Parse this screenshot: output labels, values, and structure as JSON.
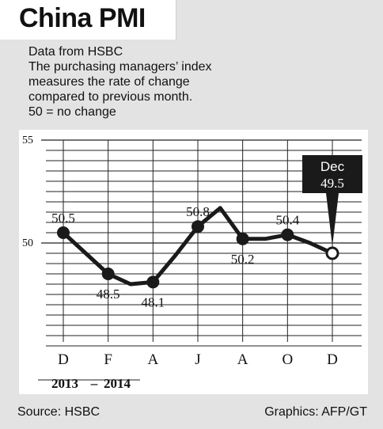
{
  "title": "China PMI",
  "description": [
    "Data from HSBC",
    "The purchasing managers’ index",
    "measures the rate of change",
    "compared to previous month.",
    "50 = no change"
  ],
  "footer": {
    "source": "Source: HSBC",
    "credit": "Graphics: AFP/GT"
  },
  "colors": {
    "line": "#1a1a1a",
    "background": "#e3e3e3",
    "panel": "#ffffff",
    "callout": "#1a1a1a",
    "callout_text": "#ffffff"
  },
  "chart_data": {
    "type": "line",
    "x": [
      "Dec 2013",
      "Jan 2014",
      "Feb 2014",
      "Mar 2014",
      "Apr 2014",
      "May 2014",
      "Jun 2014",
      "Jul 2014",
      "Aug 2014",
      "Sep 2014",
      "Oct 2014",
      "Nov 2014",
      "Dec 2014"
    ],
    "values": [
      50.5,
      49.5,
      48.5,
      48.0,
      48.1,
      49.4,
      50.8,
      51.7,
      50.2,
      50.2,
      50.4,
      50.0,
      49.5
    ],
    "tick_labels": [
      "D",
      "F",
      "A",
      "J",
      "A",
      "O",
      "D"
    ],
    "tick_indices": [
      0,
      2,
      4,
      6,
      8,
      10,
      12
    ],
    "year_labels": [
      "2013",
      "–",
      "2014"
    ],
    "yticks": [
      "55",
      "50"
    ],
    "ytick_values": [
      55,
      50
    ],
    "ylim": [
      45,
      55.5
    ],
    "grid": true,
    "data_labels": [
      {
        "index": 0,
        "text": "50.5",
        "position": "above"
      },
      {
        "index": 2,
        "text": "48.5",
        "position": "below"
      },
      {
        "index": 4,
        "text": "48.1",
        "position": "below"
      },
      {
        "index": 6,
        "text": "50.8",
        "position": "above"
      },
      {
        "index": 8,
        "text": "50.2",
        "position": "below"
      },
      {
        "index": 10,
        "text": "50.4",
        "position": "above"
      }
    ],
    "callout": {
      "index": 12,
      "label": "Dec",
      "value": "49.5"
    }
  }
}
